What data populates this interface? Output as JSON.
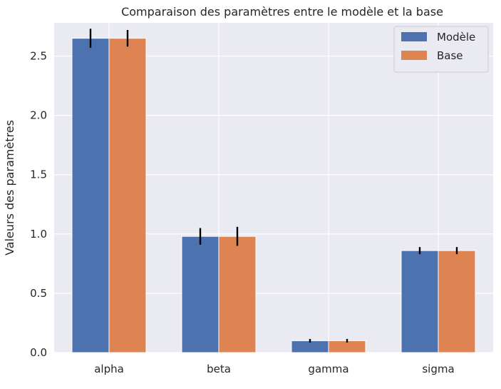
{
  "chart_data": {
    "type": "bar",
    "title": "Comparaison des paramètres entre le modèle et la base",
    "xlabel": "",
    "ylabel": "Valeurs des paramètres",
    "categories": [
      "alpha",
      "beta",
      "gamma",
      "sigma"
    ],
    "series": [
      {
        "name": "Modèle",
        "color": "#4c72b0",
        "values": [
          2.65,
          0.98,
          0.1,
          0.86
        ],
        "errors": [
          0.08,
          0.07,
          0.015,
          0.03
        ]
      },
      {
        "name": "Base",
        "color": "#dd8452",
        "values": [
          2.65,
          0.98,
          0.1,
          0.86
        ],
        "errors": [
          0.07,
          0.08,
          0.015,
          0.03
        ]
      }
    ],
    "ylim": [
      0,
      2.78
    ],
    "yticks": [
      "0.0",
      "0.5",
      "1.0",
      "1.5",
      "2.0",
      "2.5"
    ],
    "grid": true,
    "legend_position": "top-right",
    "background": "#eaeaf2",
    "error_bar_color": "#000000"
  }
}
